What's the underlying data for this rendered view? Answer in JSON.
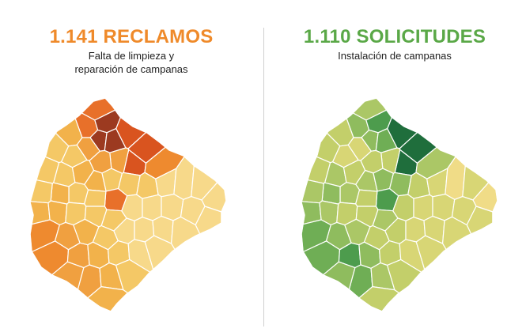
{
  "left": {
    "title": "1.141 RECLAMOS",
    "subtitle_line1": "Falta de limpieza y",
    "subtitle_line2": "reparación de campanas",
    "title_color": "#ef8a2a",
    "palette": [
      "#f7d98a",
      "#f4c866",
      "#f2b24b",
      "#f0a040",
      "#ee8a2f",
      "#e8702a",
      "#d9541f",
      "#9c3a20"
    ]
  },
  "right": {
    "title": "1.110 SOLICITUDES",
    "subtitle": "Instalación de campanas",
    "title_color": "#5aa847",
    "palette": [
      "#f0dc87",
      "#d8d675",
      "#c3cf6a",
      "#abc766",
      "#8fbc5e",
      "#6fae55",
      "#4d9c4d",
      "#1f6e3c"
    ]
  }
}
